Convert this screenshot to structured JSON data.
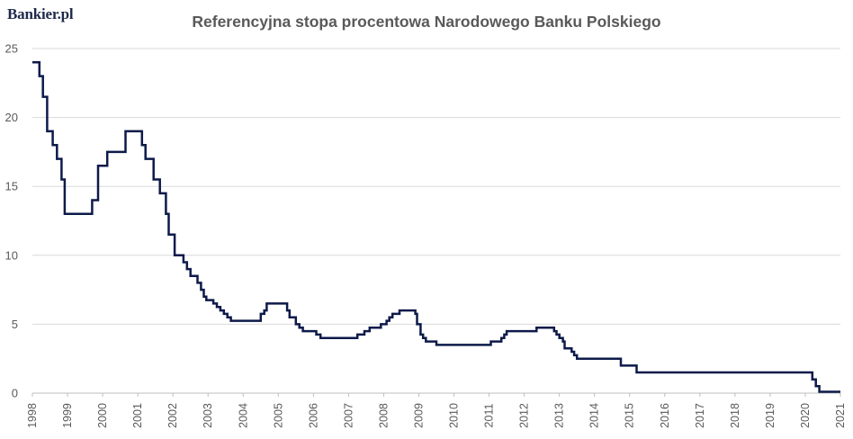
{
  "logo": "Bankier.pl",
  "chart_data": {
    "type": "line",
    "title": "Referencyjna stopa procentowa Narodowego Banku Polskiego",
    "xlabel": "",
    "ylabel": "",
    "xlim": [
      1998,
      2021
    ],
    "ylim": [
      0,
      25
    ],
    "y_ticks": [
      "0",
      "5",
      "10",
      "15",
      "20",
      "25"
    ],
    "x_ticks": [
      "1998",
      "1999",
      "2000",
      "2001",
      "2002",
      "2003",
      "2004",
      "2005",
      "2006",
      "2007",
      "2008",
      "2009",
      "2010",
      "2011",
      "2012",
      "2013",
      "2014",
      "2015",
      "2016",
      "2017",
      "2018",
      "2019",
      "2020",
      "2021"
    ],
    "grid": true,
    "legend": "none",
    "line_color": "#0d1a4a",
    "series": [
      {
        "step": true,
        "points": [
          [
            1998.0,
            24.0
          ],
          [
            1998.2,
            23.0
          ],
          [
            1998.3,
            21.5
          ],
          [
            1998.42,
            19.0
          ],
          [
            1998.58,
            18.0
          ],
          [
            1998.7,
            17.0
          ],
          [
            1998.83,
            15.5
          ],
          [
            1998.92,
            13.0
          ],
          [
            1999.7,
            14.0
          ],
          [
            1999.87,
            16.5
          ],
          [
            2000.13,
            17.5
          ],
          [
            2000.65,
            19.0
          ],
          [
            2001.12,
            18.0
          ],
          [
            2001.22,
            17.0
          ],
          [
            2001.45,
            15.5
          ],
          [
            2001.63,
            14.5
          ],
          [
            2001.8,
            13.0
          ],
          [
            2001.88,
            11.5
          ],
          [
            2002.05,
            10.0
          ],
          [
            2002.3,
            9.5
          ],
          [
            2002.4,
            9.0
          ],
          [
            2002.5,
            8.5
          ],
          [
            2002.7,
            8.0
          ],
          [
            2002.8,
            7.5
          ],
          [
            2002.88,
            7.0
          ],
          [
            2002.95,
            6.75
          ],
          [
            2003.15,
            6.5
          ],
          [
            2003.25,
            6.25
          ],
          [
            2003.35,
            6.0
          ],
          [
            2003.45,
            5.75
          ],
          [
            2003.55,
            5.5
          ],
          [
            2003.65,
            5.25
          ],
          [
            2004.5,
            5.75
          ],
          [
            2004.6,
            6.0
          ],
          [
            2004.67,
            6.5
          ],
          [
            2005.25,
            6.0
          ],
          [
            2005.32,
            5.5
          ],
          [
            2005.5,
            5.0
          ],
          [
            2005.6,
            4.75
          ],
          [
            2005.7,
            4.5
          ],
          [
            2006.08,
            4.25
          ],
          [
            2006.2,
            4.0
          ],
          [
            2007.25,
            4.25
          ],
          [
            2007.45,
            4.5
          ],
          [
            2007.6,
            4.75
          ],
          [
            2007.92,
            5.0
          ],
          [
            2008.08,
            5.25
          ],
          [
            2008.16,
            5.5
          ],
          [
            2008.25,
            5.75
          ],
          [
            2008.45,
            6.0
          ],
          [
            2008.9,
            5.75
          ],
          [
            2008.95,
            5.0
          ],
          [
            2009.05,
            4.25
          ],
          [
            2009.12,
            4.0
          ],
          [
            2009.2,
            3.75
          ],
          [
            2009.5,
            3.5
          ],
          [
            2011.05,
            3.75
          ],
          [
            2011.35,
            4.0
          ],
          [
            2011.43,
            4.25
          ],
          [
            2011.5,
            4.5
          ],
          [
            2012.35,
            4.75
          ],
          [
            2012.85,
            4.5
          ],
          [
            2012.92,
            4.25
          ],
          [
            2013.0,
            4.0
          ],
          [
            2013.1,
            3.75
          ],
          [
            2013.15,
            3.25
          ],
          [
            2013.35,
            3.0
          ],
          [
            2013.42,
            2.75
          ],
          [
            2013.5,
            2.5
          ],
          [
            2014.75,
            2.0
          ],
          [
            2015.2,
            1.5
          ],
          [
            2020.2,
            1.0
          ],
          [
            2020.3,
            0.5
          ],
          [
            2020.4,
            0.1
          ],
          [
            2021.0,
            0.1
          ]
        ]
      }
    ]
  }
}
